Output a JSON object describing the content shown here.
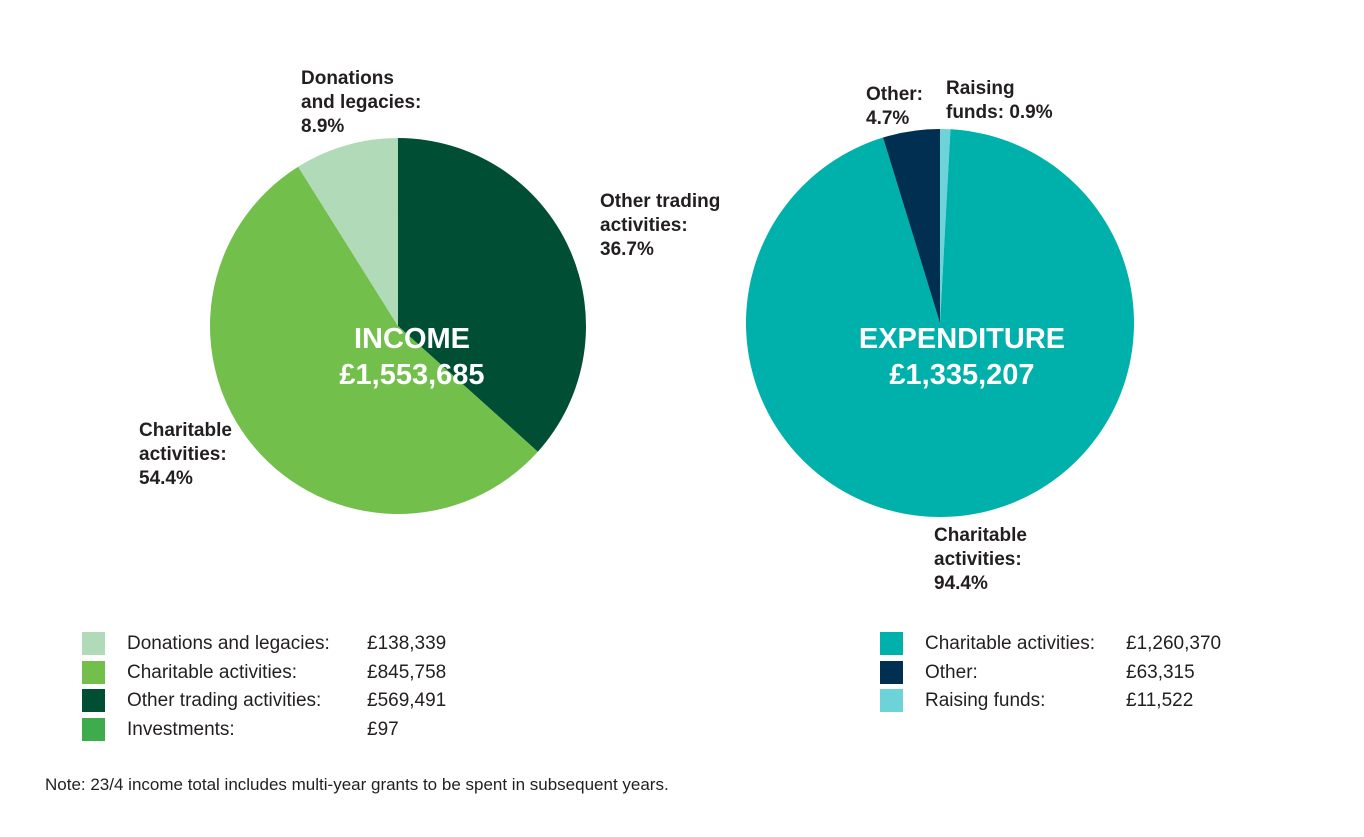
{
  "chart_data": [
    {
      "type": "pie",
      "center_title": "INCOME",
      "center_total": "£1,553,685",
      "slices": [
        {
          "name": "Other trading activities",
          "value": 569491,
          "percent": 36.7,
          "color": "#004f35",
          "label_lines": [
            "Other trading",
            "activities:",
            "36.7%"
          ]
        },
        {
          "name": "Charitable activities",
          "value": 845758,
          "percent": 54.4,
          "color": "#72bf4b",
          "label_lines": [
            "Charitable",
            "activities:",
            "54.4%"
          ]
        },
        {
          "name": "Donations and legacies",
          "value": 138339,
          "percent": 8.9,
          "color": "#b1dab9",
          "label_lines": [
            "Donations",
            "and legacies:",
            "8.9%"
          ]
        },
        {
          "name": "Investments",
          "value": 97,
          "percent": 0.0,
          "color": "#3eab4c",
          "label_lines": []
        }
      ],
      "legend": [
        {
          "label": "Donations and legacies:",
          "value": "£138,339",
          "color": "#b1dab9"
        },
        {
          "label": "Charitable activities:",
          "value": "£845,758",
          "color": "#72bf4b"
        },
        {
          "label": "Other trading activities:",
          "value": "£569,491",
          "color": "#004f35"
        },
        {
          "label": "Investments:",
          "value": "£97",
          "color": "#3eab4c"
        }
      ]
    },
    {
      "type": "pie",
      "center_title": "EXPENDITURE",
      "center_total": "£1,335,207",
      "slices": [
        {
          "name": "Raising funds",
          "value": 11522,
          "percent": 0.9,
          "color": "#6cd4d9",
          "label_lines": [
            "Raising",
            "funds: 0.9%"
          ]
        },
        {
          "name": "Charitable activities",
          "value": 1260370,
          "percent": 94.4,
          "color": "#00b0aa",
          "label_lines": [
            "Charitable",
            "activities:",
            "94.4%"
          ]
        },
        {
          "name": "Other",
          "value": 63315,
          "percent": 4.7,
          "color": "#002f52",
          "label_lines": [
            "Other:",
            "4.7%"
          ]
        }
      ],
      "legend": [
        {
          "label": "Charitable activities:",
          "value": "£1,260,370",
          "color": "#00b0aa"
        },
        {
          "label": "Other:",
          "value": "£63,315",
          "color": "#002f52"
        },
        {
          "label": "Raising funds:",
          "value": "£11,522",
          "color": "#6cd4d9"
        }
      ]
    }
  ],
  "note": "Note: 23/4 income total includes multi-year grants to be spent in subsequent years."
}
